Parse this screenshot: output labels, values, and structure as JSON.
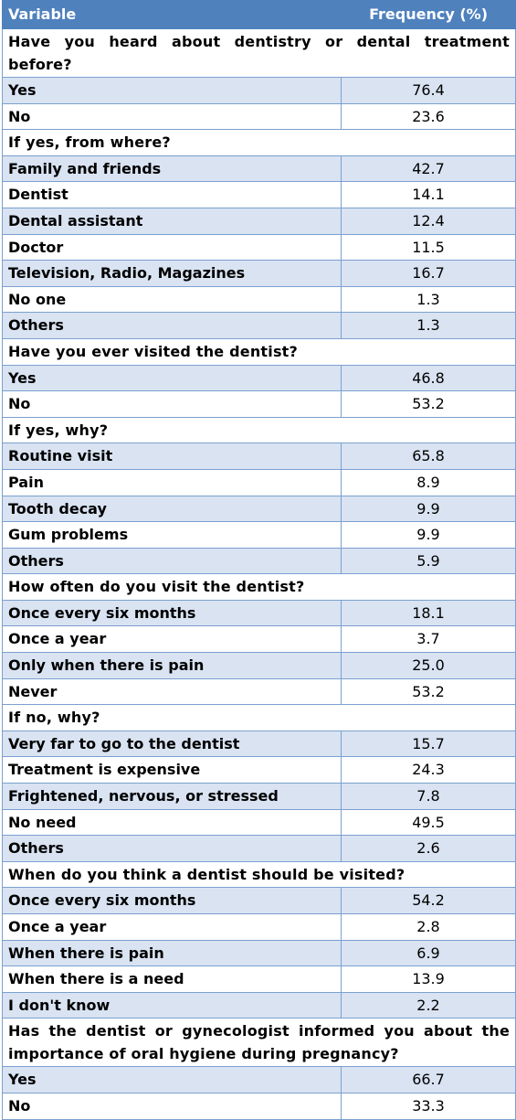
{
  "header": {
    "variable": "Variable",
    "frequency": "Frequency (%)"
  },
  "sections": [
    {
      "question": "Have you heard about dentistry or dental treatment before?",
      "rows": [
        {
          "label": "Yes",
          "value": "76.4"
        },
        {
          "label": "No",
          "value": "23.6"
        }
      ]
    },
    {
      "question": "If yes, from where?",
      "rows": [
        {
          "label": "Family and friends",
          "value": "42.7"
        },
        {
          "label": "Dentist",
          "value": "14.1"
        },
        {
          "label": "Dental assistant",
          "value": "12.4"
        },
        {
          "label": "Doctor",
          "value": "11.5"
        },
        {
          "label": "Television, Radio, Magazines",
          "value": "16.7"
        },
        {
          "label": "No one",
          "value": "1.3"
        },
        {
          "label": "Others",
          "value": "1.3"
        }
      ]
    },
    {
      "question": "Have you ever visited the dentist?",
      "rows": [
        {
          "label": "Yes",
          "value": "46.8"
        },
        {
          "label": "No",
          "value": "53.2"
        }
      ]
    },
    {
      "question": "If yes, why?",
      "rows": [
        {
          "label": "Routine visit",
          "value": "65.8"
        },
        {
          "label": "Pain",
          "value": "8.9"
        },
        {
          "label": "Tooth decay",
          "value": "9.9"
        },
        {
          "label": "Gum problems",
          "value": "9.9"
        },
        {
          "label": "Others",
          "value": "5.9"
        }
      ]
    },
    {
      "question": "How often do you visit the dentist?",
      "rows": [
        {
          "label": "Once every six months",
          "value": "18.1"
        },
        {
          "label": "Once a year",
          "value": "3.7"
        },
        {
          "label": "Only when there is pain",
          "value": "25.0"
        },
        {
          "label": "Never",
          "value": "53.2"
        }
      ]
    },
    {
      "question": "If no, why?",
      "rows": [
        {
          "label": "Very far to go to the dentist",
          "value": "15.7"
        },
        {
          "label": "Treatment is expensive",
          "value": "24.3"
        },
        {
          "label": "Frightened, nervous, or stressed",
          "value": "7.8"
        },
        {
          "label": "No need",
          "value": "49.5"
        },
        {
          "label": "Others",
          "value": "2.6"
        }
      ]
    },
    {
      "question": "When do you think a dentist should be visited?",
      "rows": [
        {
          "label": "Once  every six months",
          "value": "54.2"
        },
        {
          "label": "Once a year",
          "value": "2.8"
        },
        {
          "label": "When there is pain",
          "value": "6.9"
        },
        {
          "label": "When there is a need",
          "value": "13.9"
        },
        {
          "label": "I don't know",
          "value": "2.2"
        }
      ]
    },
    {
      "question": "Has the dentist or gynecologist informed you about the importance of oral hygiene during pregnancy?",
      "rows": [
        {
          "label": "Yes",
          "value": "66.7"
        },
        {
          "label": "No",
          "value": "33.3"
        }
      ]
    }
  ]
}
